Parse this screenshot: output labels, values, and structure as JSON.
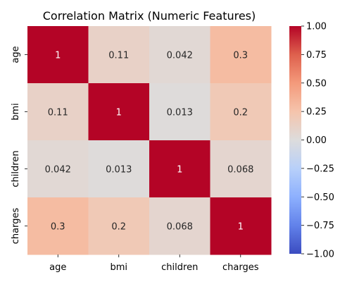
{
  "chart_data": {
    "type": "heatmap",
    "title": "Correlation Matrix (Numeric Features)",
    "x_categories": [
      "age",
      "bmi",
      "children",
      "charges"
    ],
    "y_categories": [
      "age",
      "bmi",
      "children",
      "charges"
    ],
    "values": [
      [
        1,
        0.11,
        0.042,
        0.3
      ],
      [
        0.11,
        1,
        0.013,
        0.2
      ],
      [
        0.042,
        0.013,
        1,
        0.068
      ],
      [
        0.3,
        0.2,
        0.068,
        1
      ]
    ],
    "cell_labels": [
      [
        "1",
        "0.11",
        "0.042",
        "0.3"
      ],
      [
        "0.11",
        "1",
        "0.013",
        "0.2"
      ],
      [
        "0.042",
        "0.013",
        "1",
        "0.068"
      ],
      [
        "0.3",
        "0.2",
        "0.068",
        "1"
      ]
    ],
    "colormap": "coolwarm",
    "vmin": -1,
    "vmax": 1,
    "colorbar_ticks": [
      1.0,
      0.75,
      0.5,
      0.25,
      0.0,
      -0.25,
      -0.5,
      -0.75,
      -1.0
    ],
    "colorbar_tick_labels": [
      "1.00",
      "0.75",
      "0.50",
      "0.25",
      "0.00",
      "−0.25",
      "−0.50",
      "−0.75",
      "−1.00"
    ],
    "grid": false,
    "legend": "colorbar-right"
  }
}
